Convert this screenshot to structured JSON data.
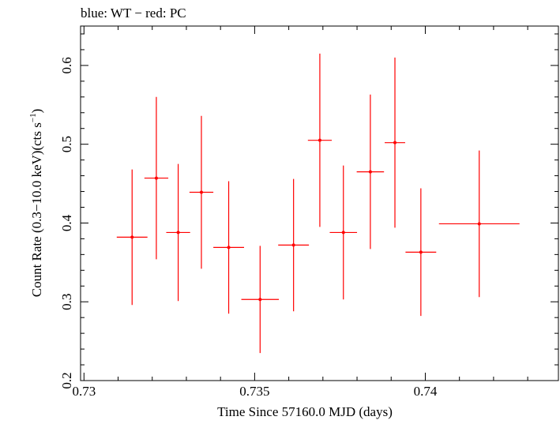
{
  "chart_data": {
    "type": "scatter",
    "title": "blue: WT − red: PC",
    "xlabel": "Time Since 57160.0 MJD (days)",
    "ylabel_main": "Count Rate (0.3−10.0 keV)(cts s",
    "ylabel_sup": "−1",
    "ylabel_end": ")",
    "xlim": [
      0.7299,
      0.7439
    ],
    "ylim": [
      0.2,
      0.65
    ],
    "x_ticks": [
      {
        "value": 0.73,
        "label": "0.73"
      },
      {
        "value": 0.735,
        "label": "0.735"
      },
      {
        "value": 0.74,
        "label": "0.74"
      }
    ],
    "y_ticks": [
      {
        "value": 0.2,
        "label": "0.2"
      },
      {
        "value": 0.3,
        "label": "0.3"
      },
      {
        "value": 0.4,
        "label": "0.4"
      },
      {
        "value": 0.5,
        "label": "0.5"
      },
      {
        "value": 0.6,
        "label": "0.6"
      }
    ],
    "x_minor_step": 0.001,
    "y_minor_step": 0.02,
    "grid": false,
    "series": [
      {
        "color": "#ff0000",
        "points": [
          {
            "x": 0.73141,
            "xerr": 0.00045,
            "y": 0.382,
            "yerr_low": 0.086,
            "yerr_high": 0.086
          },
          {
            "x": 0.73212,
            "xerr": 0.00035,
            "y": 0.457,
            "yerr_low": 0.103,
            "yerr_high": 0.103
          },
          {
            "x": 0.73276,
            "xerr": 0.00035,
            "y": 0.388,
            "yerr_low": 0.087,
            "yerr_high": 0.087
          },
          {
            "x": 0.73344,
            "xerr": 0.00035,
            "y": 0.439,
            "yerr_low": 0.097,
            "yerr_high": 0.097
          },
          {
            "x": 0.73424,
            "xerr": 0.00045,
            "y": 0.369,
            "yerr_low": 0.084,
            "yerr_high": 0.084
          },
          {
            "x": 0.73516,
            "xerr": 0.00055,
            "y": 0.303,
            "yerr_low": 0.068,
            "yerr_high": 0.068
          },
          {
            "x": 0.73614,
            "xerr": 0.00045,
            "y": 0.372,
            "yerr_low": 0.084,
            "yerr_high": 0.084
          },
          {
            "x": 0.73691,
            "xerr": 0.00035,
            "y": 0.505,
            "yerr_low": 0.11,
            "yerr_high": 0.11
          },
          {
            "x": 0.7376,
            "xerr": 0.0004,
            "y": 0.388,
            "yerr_low": 0.085,
            "yerr_high": 0.085
          },
          {
            "x": 0.73839,
            "xerr": 0.0004,
            "y": 0.465,
            "yerr_low": 0.098,
            "yerr_high": 0.098
          },
          {
            "x": 0.73911,
            "xerr": 0.0003,
            "y": 0.502,
            "yerr_low": 0.108,
            "yerr_high": 0.108
          },
          {
            "x": 0.73987,
            "xerr": 0.00045,
            "y": 0.363,
            "yerr_low": 0.081,
            "yerr_high": 0.081
          },
          {
            "x": 0.74158,
            "xerr": 0.00118,
            "y": 0.399,
            "yerr_low": 0.093,
            "yerr_high": 0.093
          }
        ]
      }
    ]
  }
}
